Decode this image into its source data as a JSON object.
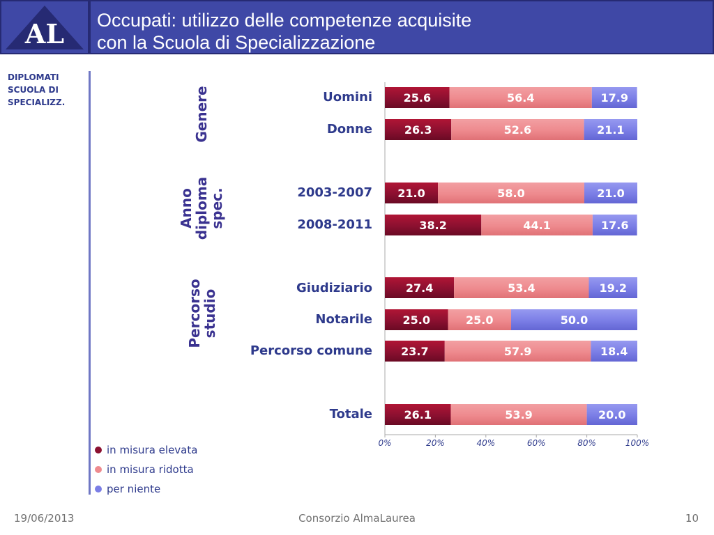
{
  "header": {
    "logo_text": "AL",
    "title_line_1": "Occupati: utilizzo delle competenze acquisite",
    "title_line_2": "con la Scuola di Specializzazione"
  },
  "section_label": [
    "DIPLOMATI",
    "SCUOLA DI",
    "SPECIALIZZ."
  ],
  "groups": [
    {
      "lines": [
        "Genere"
      ]
    },
    {
      "lines": [
        "Anno",
        "diploma",
        "spec."
      ]
    },
    {
      "lines": [
        "Percorso",
        "studio"
      ]
    }
  ],
  "legend": [
    {
      "label": "in misura elevata",
      "color": "#8b1030"
    },
    {
      "label": "in misura ridotta",
      "color": "#ee8a8e"
    },
    {
      "label": "per niente",
      "color": "#7b7ee6"
    }
  ],
  "chart_data": {
    "type": "bar",
    "orientation": "horizontal",
    "stacked": true,
    "percent": true,
    "categories": [
      "Uomini",
      "Donne",
      "2003-2007",
      "2008-2011",
      "Giudiziario",
      "Notarile",
      "Percorso comune",
      "Totale"
    ],
    "series": [
      {
        "name": "in misura elevata",
        "color": "#8b1030",
        "values": [
          25.6,
          26.3,
          21.0,
          38.2,
          27.4,
          25.0,
          23.7,
          26.1
        ]
      },
      {
        "name": "in misura ridotta",
        "color": "#ee8a8e",
        "values": [
          56.4,
          52.6,
          58.0,
          44.1,
          53.4,
          25.0,
          57.9,
          53.9
        ]
      },
      {
        "name": "per niente",
        "color": "#7b7ee6",
        "values": [
          17.9,
          21.1,
          21.0,
          17.6,
          19.2,
          50.0,
          18.4,
          20.0
        ]
      }
    ],
    "xlim": [
      0,
      100
    ],
    "xticks": [
      "0%",
      "20%",
      "40%",
      "60%",
      "80%",
      "100%"
    ],
    "grid": false
  },
  "footer": {
    "date": "19/06/2013",
    "center": "Consorzio AlmaLaurea",
    "page": "10"
  }
}
